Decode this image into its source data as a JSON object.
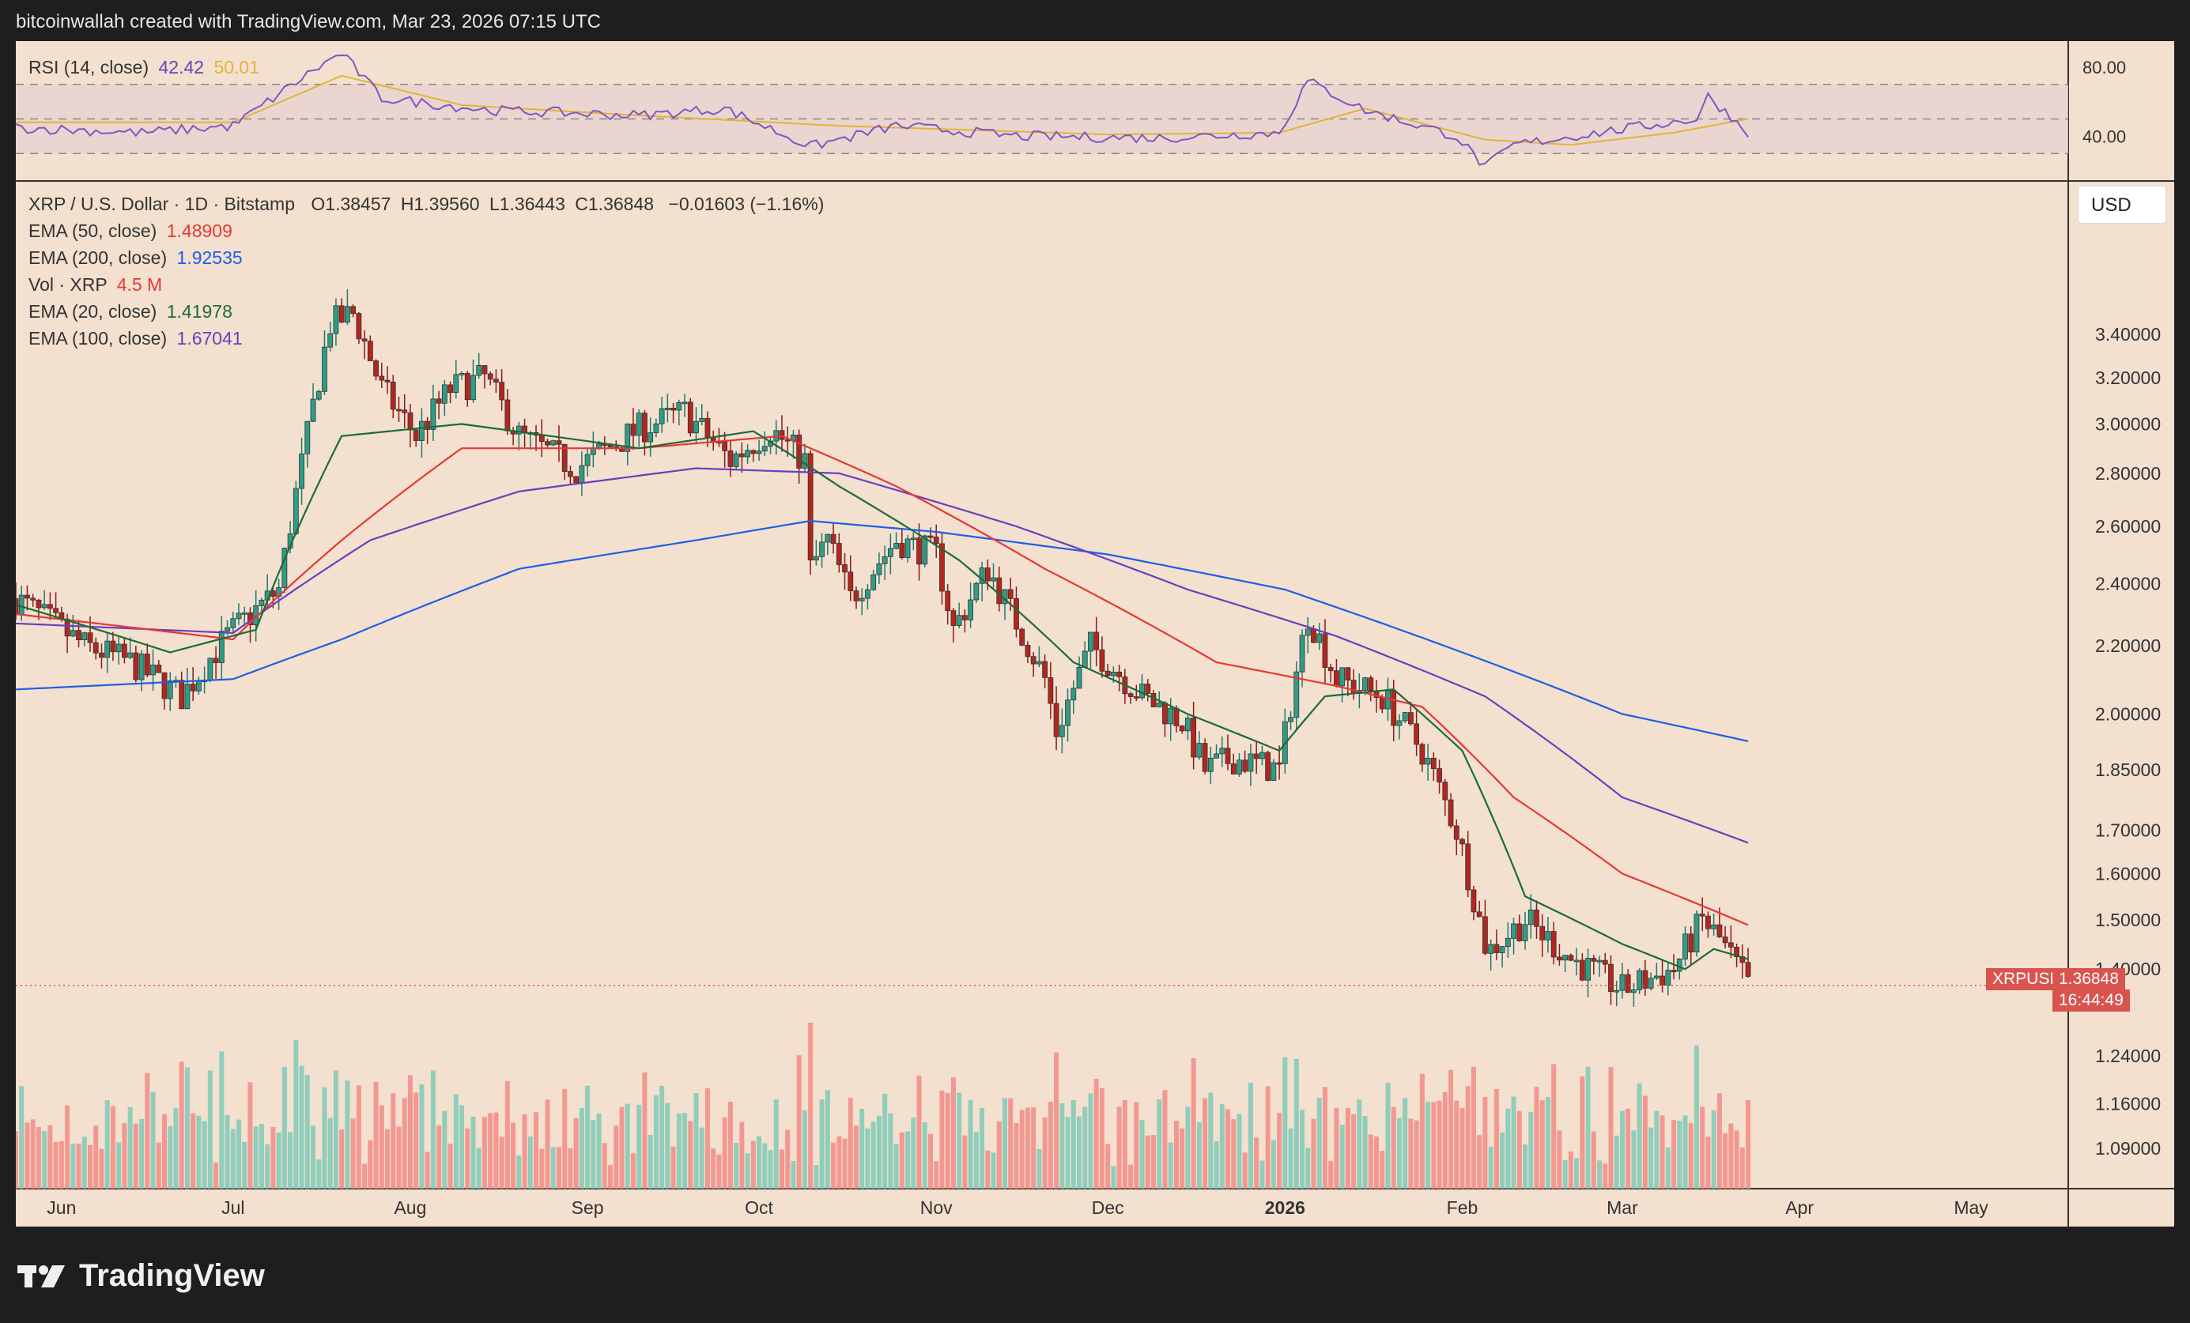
{
  "header": "bitcoinwallah created with TradingView.com, Mar 23, 2026 07:15 UTC",
  "footer": {
    "brand": "TradingView",
    "logo": "tradingview-logo"
  },
  "currency_button": "USD",
  "rsi_panel": {
    "label": "RSI (14, close)",
    "value": "42.42",
    "ma_value": "50.01",
    "ticks": [
      "80.00",
      "40.00"
    ]
  },
  "main_panel": {
    "title": "XRP / U.S. Dollar · 1D · Bitstamp",
    "ohlc": {
      "o": "O1.38457",
      "h": "H1.39560",
      "l": "L1.36443",
      "c": "C1.36848",
      "chg": "−0.01603 (−1.16%)"
    },
    "legend": [
      {
        "label": "EMA (50, close)",
        "value": "1.48909",
        "color": "#e53935"
      },
      {
        "label": "EMA (200, close)",
        "value": "1.92535",
        "color": "#1e5ee6"
      },
      {
        "label": "Vol · XRP",
        "value": "4.5 M",
        "color": "#e53935"
      },
      {
        "label": "EMA (20, close)",
        "value": "1.41978",
        "color": "#1b6b3a"
      },
      {
        "label": "EMA (100, close)",
        "value": "1.67041",
        "color": "#6a3fbf"
      }
    ],
    "price_tag": {
      "symbol": "XRPUSD",
      "price": "1.36848",
      "countdown": "16:44:49"
    }
  },
  "colors": {
    "up": "#26a69a",
    "down": "#ef5350",
    "bg": "#f3e0cf"
  },
  "chart_data": {
    "type": "candlestick",
    "y_scale": "log",
    "ylim": [
      1.03,
      4.2
    ],
    "y_ticks": [
      "3.40000",
      "3.20000",
      "3.00000",
      "2.80000",
      "2.60000",
      "2.40000",
      "2.20000",
      "2.00000",
      "1.85000",
      "1.70000",
      "1.60000",
      "1.50000",
      "1.40000",
      "1.24000",
      "1.16000",
      "1.09000"
    ],
    "x_ticks": [
      "Jun",
      "Jul",
      "Aug",
      "Sep",
      "Oct",
      "Nov",
      "Dec",
      "2026",
      "Feb",
      "Mar",
      "Apr",
      "May"
    ],
    "x_tick_dates": [
      "2025-06-01",
      "2025-07-01",
      "2025-08-01",
      "2025-09-01",
      "2025-10-01",
      "2025-11-01",
      "2025-12-01",
      "2026-01-01",
      "2026-02-01",
      "2026-03-01",
      "2026-04-01",
      "2026-05-01"
    ],
    "x_range": [
      "2025-05-24",
      "2026-05-18"
    ],
    "anchors": [
      [
        "2025-05-24",
        2.35
      ],
      [
        "2025-06-05",
        2.2
      ],
      [
        "2025-06-13",
        2.15
      ],
      [
        "2025-06-22",
        2.05
      ],
      [
        "2025-06-30",
        2.23
      ],
      [
        "2025-07-09",
        2.38
      ],
      [
        "2025-07-14",
        2.95
      ],
      [
        "2025-07-18",
        3.45
      ],
      [
        "2025-07-22",
        3.5
      ],
      [
        "2025-07-27",
        3.15
      ],
      [
        "2025-08-02",
        2.95
      ],
      [
        "2025-08-08",
        3.15
      ],
      [
        "2025-08-14",
        3.2
      ],
      [
        "2025-08-20",
        2.95
      ],
      [
        "2025-08-30",
        2.82
      ],
      [
        "2025-09-10",
        2.98
      ],
      [
        "2025-09-18",
        3.05
      ],
      [
        "2025-09-26",
        2.85
      ],
      [
        "2025-10-03",
        2.98
      ],
      [
        "2025-10-09",
        2.85
      ],
      [
        "2025-10-10",
        2.45
      ],
      [
        "2025-10-13",
        2.55
      ],
      [
        "2025-10-17",
        2.35
      ],
      [
        "2025-10-25",
        2.55
      ],
      [
        "2025-11-01",
        2.5
      ],
      [
        "2025-11-04",
        2.25
      ],
      [
        "2025-11-10",
        2.45
      ],
      [
        "2025-11-20",
        2.1
      ],
      [
        "2025-11-22",
        1.95
      ],
      [
        "2025-11-28",
        2.2
      ],
      [
        "2025-12-07",
        2.05
      ],
      [
        "2025-12-14",
        1.98
      ],
      [
        "2025-12-18",
        1.85
      ],
      [
        "2025-12-23",
        1.88
      ],
      [
        "2025-12-31",
        1.85
      ],
      [
        "2026-01-05",
        2.3
      ],
      [
        "2026-01-10",
        2.1
      ],
      [
        "2026-01-18",
        2.05
      ],
      [
        "2026-01-25",
        1.9
      ],
      [
        "2026-01-31",
        1.7
      ],
      [
        "2026-02-05",
        1.45
      ],
      [
        "2026-02-06",
        1.44
      ],
      [
        "2026-02-12",
        1.5
      ],
      [
        "2026-02-20",
        1.42
      ],
      [
        "2026-03-01",
        1.36
      ],
      [
        "2026-03-10",
        1.4
      ],
      [
        "2026-03-15",
        1.5
      ],
      [
        "2026-03-18",
        1.46
      ],
      [
        "2026-03-23",
        1.37
      ]
    ],
    "series": [
      {
        "name": "EMA (200, close)",
        "color": "#1e5ee6",
        "points": [
          [
            "2025-05-24",
            2.07
          ],
          [
            "2025-07-01",
            2.1
          ],
          [
            "2025-07-20",
            2.22
          ],
          [
            "2025-08-20",
            2.45
          ],
          [
            "2025-09-20",
            2.55
          ],
          [
            "2025-10-10",
            2.62
          ],
          [
            "2025-11-01",
            2.58
          ],
          [
            "2025-12-01",
            2.5
          ],
          [
            "2026-01-01",
            2.38
          ],
          [
            "2026-02-01",
            2.18
          ],
          [
            "2026-03-01",
            2.0
          ],
          [
            "2026-03-23",
            1.92535
          ]
        ]
      },
      {
        "name": "EMA (100, close)",
        "color": "#6a3fbf",
        "points": [
          [
            "2025-05-24",
            2.27
          ],
          [
            "2025-07-01",
            2.24
          ],
          [
            "2025-07-25",
            2.55
          ],
          [
            "2025-08-20",
            2.73
          ],
          [
            "2025-09-20",
            2.82
          ],
          [
            "2025-10-15",
            2.8
          ],
          [
            "2025-11-15",
            2.6
          ],
          [
            "2025-12-15",
            2.38
          ],
          [
            "2026-01-10",
            2.23
          ],
          [
            "2026-02-05",
            2.05
          ],
          [
            "2026-03-01",
            1.78
          ],
          [
            "2026-03-23",
            1.67041
          ]
        ]
      },
      {
        "name": "EMA (50, close)",
        "color": "#e53935",
        "points": [
          [
            "2025-05-24",
            2.3
          ],
          [
            "2025-07-01",
            2.22
          ],
          [
            "2025-07-20",
            2.55
          ],
          [
            "2025-08-10",
            2.9
          ],
          [
            "2025-09-10",
            2.9
          ],
          [
            "2025-10-05",
            2.95
          ],
          [
            "2025-10-25",
            2.75
          ],
          [
            "2025-11-20",
            2.45
          ],
          [
            "2025-12-20",
            2.15
          ],
          [
            "2026-01-10",
            2.08
          ],
          [
            "2026-01-25",
            2.02
          ],
          [
            "2026-02-10",
            1.78
          ],
          [
            "2026-03-01",
            1.6
          ],
          [
            "2026-03-23",
            1.48909
          ]
        ]
      },
      {
        "name": "EMA (20, close)",
        "color": "#1b6b3a",
        "points": [
          [
            "2025-05-24",
            2.33
          ],
          [
            "2025-06-20",
            2.18
          ],
          [
            "2025-07-05",
            2.25
          ],
          [
            "2025-07-20",
            2.95
          ],
          [
            "2025-08-10",
            3.0
          ],
          [
            "2025-09-10",
            2.9
          ],
          [
            "2025-09-30",
            2.97
          ],
          [
            "2025-10-15",
            2.75
          ],
          [
            "2025-11-05",
            2.48
          ],
          [
            "2025-11-25",
            2.15
          ],
          [
            "2025-12-15",
            2.0
          ],
          [
            "2025-12-31",
            1.9
          ],
          [
            "2026-01-08",
            2.05
          ],
          [
            "2026-01-20",
            2.07
          ],
          [
            "2026-02-01",
            1.9
          ],
          [
            "2026-02-12",
            1.55
          ],
          [
            "2026-03-01",
            1.45
          ],
          [
            "2026-03-12",
            1.4
          ],
          [
            "2026-03-17",
            1.44
          ],
          [
            "2026-03-23",
            1.41978
          ]
        ]
      }
    ],
    "last_close": 1.36848,
    "rsi": {
      "ylim": [
        15,
        95
      ],
      "levels": [
        70,
        50,
        30
      ],
      "ticks": [
        80,
        40
      ],
      "anchors": [
        [
          "2025-05-24",
          45
        ],
        [
          "2025-06-15",
          42
        ],
        [
          "2025-07-01",
          46
        ],
        [
          "2025-07-15",
          78
        ],
        [
          "2025-07-20",
          88
        ],
        [
          "2025-07-27",
          62
        ],
        [
          "2025-08-15",
          55
        ],
        [
          "2025-09-10",
          52
        ],
        [
          "2025-09-25",
          56
        ],
        [
          "2025-10-10",
          34
        ],
        [
          "2025-10-25",
          46
        ],
        [
          "2025-11-15",
          40
        ],
        [
          "2025-12-10",
          39
        ],
        [
          "2025-12-31",
          42
        ],
        [
          "2026-01-05",
          72
        ],
        [
          "2026-01-15",
          55
        ],
        [
          "2026-01-31",
          40
        ],
        [
          "2026-02-05",
          22
        ],
        [
          "2026-02-10",
          35
        ],
        [
          "2026-03-01",
          44
        ],
        [
          "2026-03-14",
          50
        ],
        [
          "2026-03-16",
          63
        ],
        [
          "2026-03-23",
          42.42
        ]
      ],
      "ma_anchors": [
        [
          "2025-05-24",
          48
        ],
        [
          "2025-07-01",
          48
        ],
        [
          "2025-07-20",
          75
        ],
        [
          "2025-08-10",
          58
        ],
        [
          "2025-09-10",
          52
        ],
        [
          "2025-10-15",
          46
        ],
        [
          "2025-12-01",
          41
        ],
        [
          "2025-12-31",
          42
        ],
        [
          "2026-01-15",
          56
        ],
        [
          "2026-02-05",
          38
        ],
        [
          "2026-02-20",
          35
        ],
        [
          "2026-03-10",
          42
        ],
        [
          "2026-03-23",
          50.01
        ]
      ]
    }
  }
}
